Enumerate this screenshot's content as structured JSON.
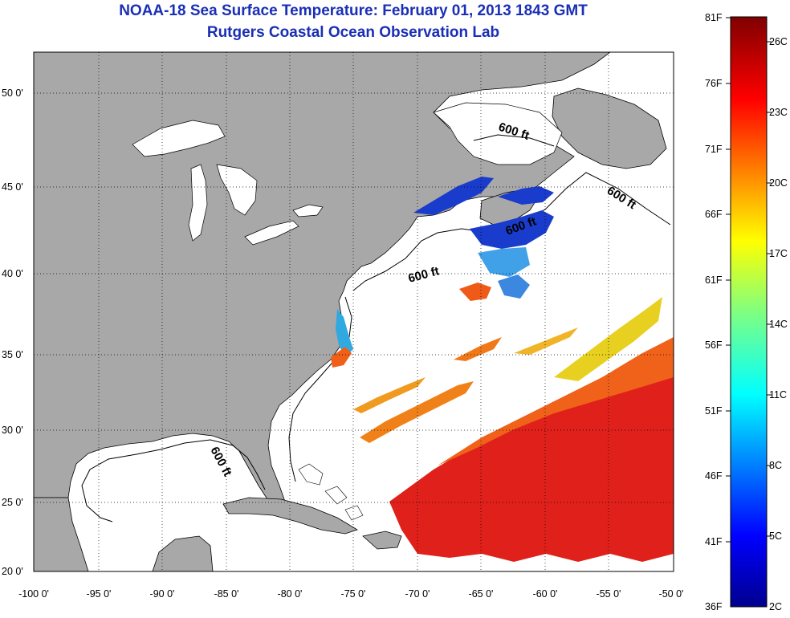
{
  "title": "NOAA-18 Sea Surface Temperature:  February 01, 2013 1843 GMT",
  "subtitle": "Rutgers Coastal Ocean Observation Lab",
  "lat_ticks": [
    "50 0'",
    "45 0'",
    "40 0'",
    "35 0'",
    "30 0'",
    "25 0'",
    "20 0'"
  ],
  "lon_ticks": [
    "-100 0'",
    "-95 0'",
    "-90 0'",
    "-85 0'",
    "-80 0'",
    "-75 0'",
    "-70 0'",
    "-65 0'",
    "-60 0'",
    "-55 0'",
    "-50 0'"
  ],
  "contour_labels": [
    "600 ft",
    "600 ft",
    "600 ft",
    "600 ft",
    "600 ft"
  ],
  "colorbar": {
    "fahrenheit": [
      "81F",
      "76F",
      "71F",
      "66F",
      "61F",
      "56F",
      "51F",
      "46F",
      "41F",
      "36F"
    ],
    "celsius": [
      "26C",
      "23C",
      "20C",
      "17C",
      "14C",
      "11C",
      "8C",
      "5C",
      "2C"
    ]
  },
  "colors": {
    "land": "#a8a8a8",
    "ocean": "#ffffff",
    "title": "#1a2fb5"
  }
}
